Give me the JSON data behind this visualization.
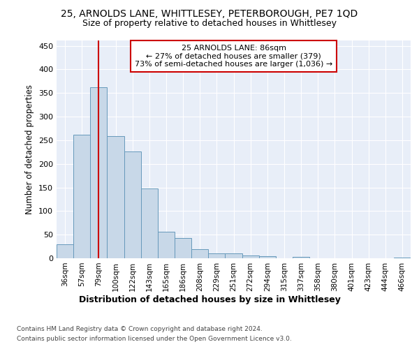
{
  "title": "25, ARNOLDS LANE, WHITTLESEY, PETERBOROUGH, PE7 1QD",
  "subtitle": "Size of property relative to detached houses in Whittlesey",
  "xlabel": "Distribution of detached houses by size in Whittlesey",
  "ylabel": "Number of detached properties",
  "categories": [
    "36sqm",
    "57sqm",
    "79sqm",
    "100sqm",
    "122sqm",
    "143sqm",
    "165sqm",
    "186sqm",
    "208sqm",
    "229sqm",
    "251sqm",
    "272sqm",
    "294sqm",
    "315sqm",
    "337sqm",
    "358sqm",
    "380sqm",
    "401sqm",
    "423sqm",
    "444sqm",
    "466sqm"
  ],
  "values": [
    30,
    262,
    362,
    258,
    226,
    148,
    56,
    43,
    19,
    11,
    11,
    6,
    5,
    0,
    3,
    0,
    0,
    0,
    0,
    0,
    1
  ],
  "bar_color": "#c8d8e8",
  "bar_edge_color": "#6699bb",
  "property_line_x": 2.0,
  "property_line_color": "#cc0000",
  "annotation_text": "25 ARNOLDS LANE: 86sqm\n← 27% of detached houses are smaller (379)\n73% of semi-detached houses are larger (1,036) →",
  "annotation_box_color": "#ffffff",
  "annotation_box_edge_color": "#cc0000",
  "ylim": [
    0,
    462
  ],
  "yticks": [
    0,
    50,
    100,
    150,
    200,
    250,
    300,
    350,
    400,
    450
  ],
  "background_color": "#e8eef8",
  "footer_line1": "Contains HM Land Registry data © Crown copyright and database right 2024.",
  "footer_line2": "Contains public sector information licensed under the Open Government Licence v3.0."
}
